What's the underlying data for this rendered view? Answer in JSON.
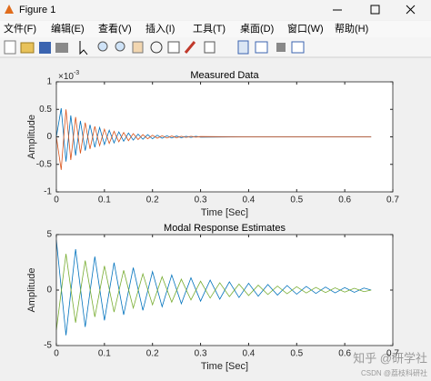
{
  "window": {
    "title": "Figure 1"
  },
  "menu": [
    "文件(F)",
    "编辑(E)",
    "查看(V)",
    "插入(I)",
    "工具(T)",
    "桌面(D)",
    "窗口(W)",
    "帮助(H)"
  ],
  "watermark": {
    "main": "知乎 @研学社",
    "sub": "CSDN @荔枝科研社"
  },
  "chart_data": [
    {
      "type": "line",
      "title": "Measured Data",
      "x_label": "Time [Sec]",
      "y_label": "Amplitude",
      "y_multiplier_base": "×10",
      "y_multiplier_exponent": "-3",
      "xlim": [
        0,
        0.7
      ],
      "xticks": [
        0,
        0.1,
        0.2,
        0.3,
        0.4,
        0.5,
        0.6,
        0.7
      ],
      "ylim": [
        -1,
        1
      ],
      "yticks": [
        -1,
        -0.5,
        0,
        0.5,
        1
      ],
      "x": [
        0,
        0.01,
        0.02,
        0.03,
        0.04,
        0.05,
        0.06,
        0.07,
        0.08,
        0.09,
        0.1,
        0.11,
        0.12,
        0.13,
        0.14,
        0.15,
        0.16,
        0.17,
        0.18,
        0.19,
        0.2,
        0.21,
        0.22,
        0.23,
        0.24,
        0.25,
        0.26,
        0.27,
        0.28,
        0.29,
        0.3,
        0.4,
        0.5,
        0.655
      ],
      "series": [
        {
          "color": "#0072bd",
          "values": [
            0,
            0.52,
            -0.45,
            0.39,
            -0.34,
            0.29,
            -0.25,
            0.22,
            -0.19,
            0.17,
            -0.14,
            0.12,
            -0.11,
            0.09,
            -0.08,
            0.07,
            -0.06,
            0.05,
            -0.045,
            0.04,
            -0.035,
            0.03,
            -0.025,
            0.02,
            -0.02,
            0.015,
            -0.015,
            0.01,
            -0.01,
            0.01,
            -0.005,
            0,
            0,
            0
          ]
        },
        {
          "color": "#d95319",
          "values": [
            0,
            -0.6,
            0.5,
            -0.42,
            0.36,
            -0.3,
            0.26,
            -0.22,
            0.19,
            -0.16,
            0.14,
            -0.12,
            0.1,
            -0.09,
            0.08,
            -0.07,
            0.06,
            -0.05,
            0.04,
            -0.035,
            0.03,
            -0.025,
            0.02,
            -0.02,
            0.015,
            -0.015,
            0.01,
            -0.01,
            0.01,
            -0.005,
            0.005,
            0,
            0,
            0
          ]
        }
      ]
    },
    {
      "type": "line",
      "title": "Modal Response Estimates",
      "x_label": "Time [Sec]",
      "y_label": "Amplitude",
      "xlim": [
        0,
        0.7
      ],
      "xticks": [
        0,
        0.1,
        0.2,
        0.3,
        0.4,
        0.5,
        0.6,
        0.7
      ],
      "ylim": [
        -5,
        5
      ],
      "yticks": [
        -5,
        0,
        5
      ],
      "x": [
        0,
        0.02,
        0.04,
        0.06,
        0.08,
        0.1,
        0.12,
        0.14,
        0.16,
        0.18,
        0.2,
        0.22,
        0.24,
        0.26,
        0.28,
        0.3,
        0.32,
        0.34,
        0.36,
        0.38,
        0.4,
        0.42,
        0.44,
        0.46,
        0.48,
        0.5,
        0.52,
        0.54,
        0.56,
        0.58,
        0.6,
        0.62,
        0.64,
        0.655
      ],
      "series": [
        {
          "color": "#0072bd",
          "values": [
            4.5,
            -4.07,
            3.68,
            -3.33,
            3.02,
            -2.73,
            2.47,
            -2.23,
            2.02,
            -1.83,
            1.66,
            -1.5,
            1.36,
            -1.23,
            1.11,
            -1.0,
            0.9,
            -0.82,
            0.74,
            -0.67,
            0.61,
            -0.55,
            0.5,
            -0.45,
            0.41,
            -0.37,
            0.33,
            -0.3,
            0.27,
            -0.25,
            0.22,
            -0.2,
            0.18,
            0
          ]
        },
        {
          "color": "#77ac30",
          "values": [
            -3.6,
            3.26,
            -2.94,
            2.66,
            -2.42,
            2.18,
            -1.98,
            1.78,
            -1.62,
            1.46,
            -1.33,
            1.2,
            -1.09,
            0.98,
            -0.89,
            0.8,
            -0.72,
            0.66,
            -0.59,
            0.54,
            -0.49,
            0.44,
            -0.4,
            0.36,
            -0.33,
            0.3,
            -0.26,
            0.24,
            -0.22,
            0.2,
            -0.18,
            0.16,
            -0.14,
            0
          ]
        }
      ]
    }
  ]
}
